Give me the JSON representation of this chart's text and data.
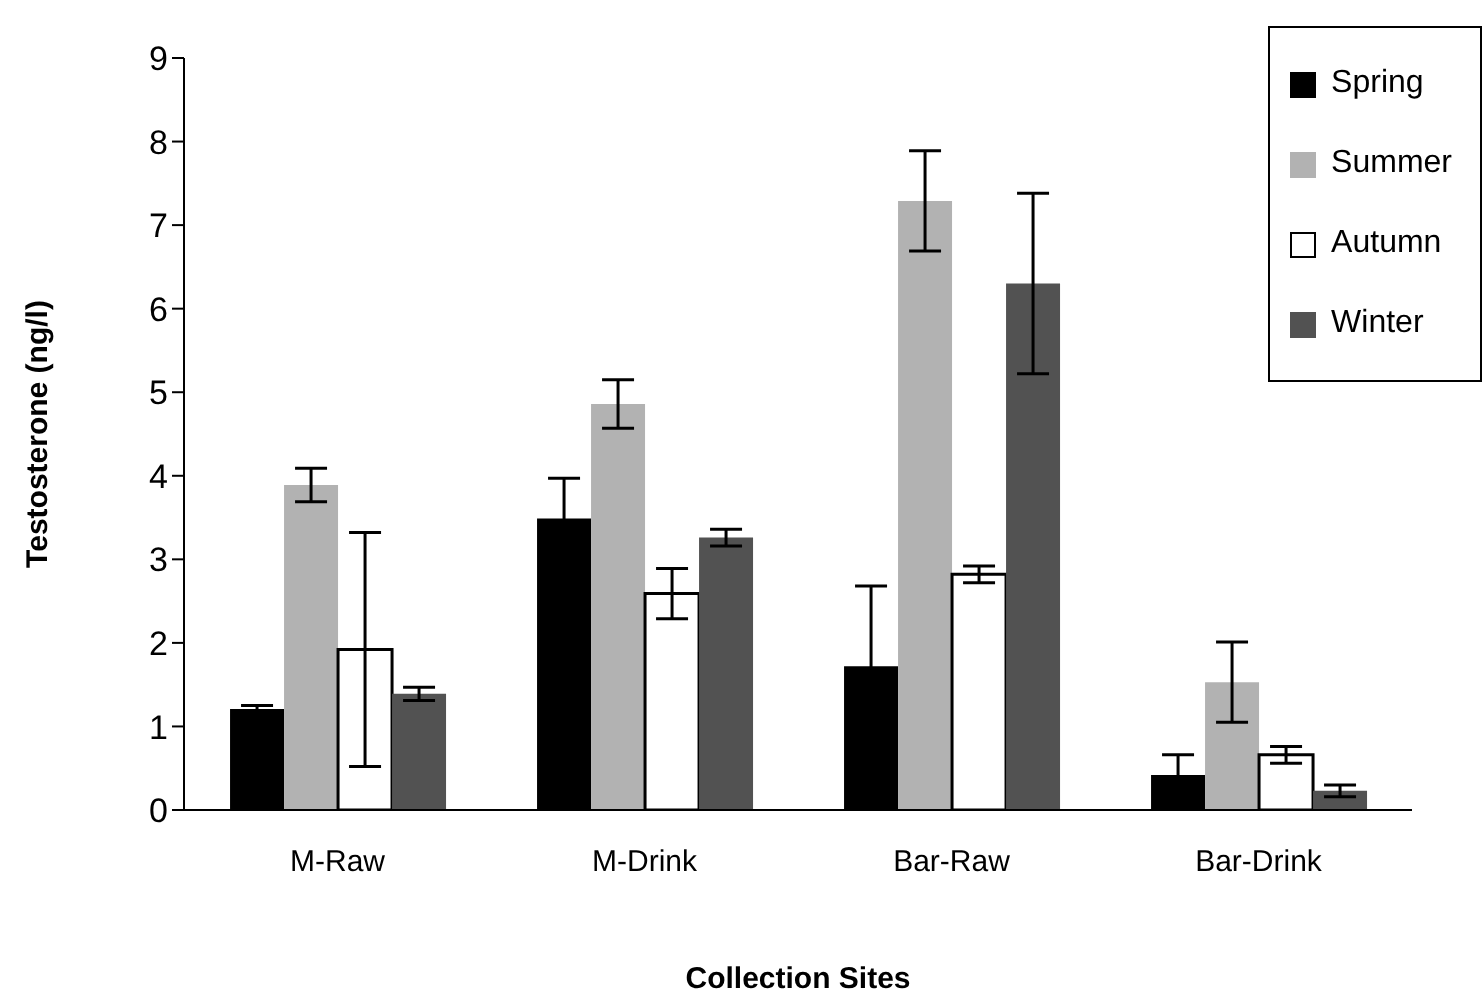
{
  "chart_data": {
    "type": "bar",
    "xlabel": "Collection Sites",
    "ylabel": "Testosterone (ng/l)",
    "categories": [
      "M-Raw",
      "M-Drink",
      "Bar-Raw",
      "Bar-Drink"
    ],
    "series": [
      {
        "name": "Spring",
        "color": "#000000",
        "values": [
          1.21,
          3.49,
          1.72,
          0.42
        ],
        "errors": [
          0.04,
          0.48,
          0.96,
          0.24
        ]
      },
      {
        "name": "Summer",
        "color": "#b2b2b2",
        "values": [
          3.89,
          4.86,
          7.29,
          1.53
        ],
        "errors": [
          0.2,
          0.29,
          0.6,
          0.48
        ]
      },
      {
        "name": "Autumn",
        "color": "#ffffff",
        "values": [
          1.92,
          2.59,
          2.82,
          0.66
        ],
        "errors": [
          1.4,
          0.3,
          0.1,
          0.1
        ]
      },
      {
        "name": "Winter",
        "color": "#525252",
        "values": [
          1.39,
          3.26,
          6.3,
          0.23
        ],
        "errors": [
          0.08,
          0.1,
          1.08,
          0.07
        ]
      }
    ],
    "ylim": [
      0,
      9
    ],
    "yticks": [
      0,
      1,
      2,
      3,
      4,
      5,
      6,
      7,
      8,
      9
    ],
    "legend": "top right"
  }
}
